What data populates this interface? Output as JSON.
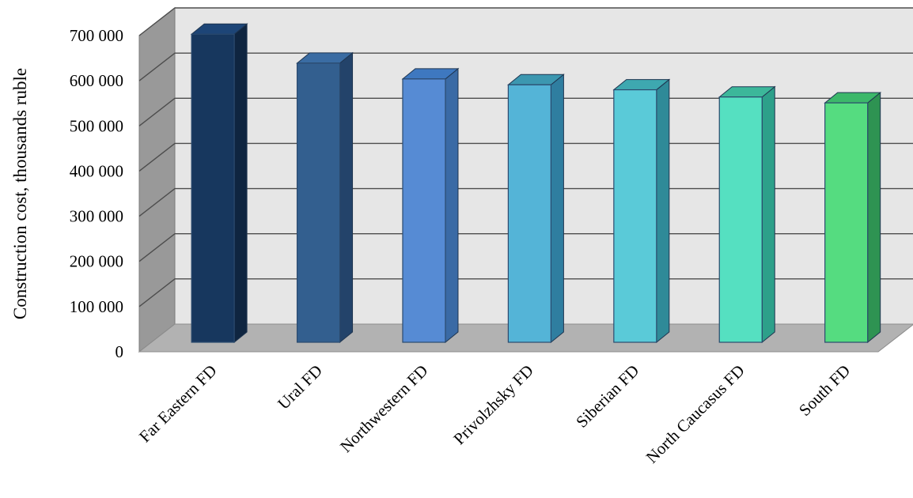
{
  "chart_data": {
    "type": "bar",
    "style": "3d-column",
    "title": "",
    "xlabel": "",
    "ylabel": "Construction cost,  thousands  ruble",
    "categories": [
      "Far Eastern FD",
      "Ural FD",
      "Northwestern FD",
      "Privolzhsky FD",
      "Siberian FD",
      "North Caucasus FD",
      "South FD"
    ],
    "values": [
      682000,
      618000,
      583000,
      570000,
      559000,
      543000,
      530000
    ],
    "ylim": [
      0,
      700000
    ],
    "yticks": [
      0,
      100000,
      200000,
      300000,
      400000,
      500000,
      600000,
      700000
    ],
    "ytick_labels": [
      "0",
      "100 000",
      "200 000",
      "300 000",
      "400 000",
      "500 000",
      "600 000",
      "700 000"
    ],
    "grid": true,
    "legend": "none",
    "colors": {
      "bars": [
        "#17375e",
        "#335f8f",
        "#568bd4",
        "#54b4d7",
        "#5acad8",
        "#55e0c1",
        "#55dc80"
      ],
      "bar_sides": [
        "#0f2540",
        "#23436a",
        "#3a6aa5",
        "#2f7ea0",
        "#2f8a98",
        "#2da08a",
        "#2e9352"
      ],
      "bar_tops": [
        "#1d4577",
        "#3a6ca3",
        "#3e78c0",
        "#3c97b0",
        "#3ea8b0",
        "#3cb79a",
        "#3cb86a"
      ],
      "back_wall": "#e6e6e6",
      "side_wall": "#999999",
      "floor": "#b2b2b2",
      "gridline": "#4d4d4d"
    }
  }
}
